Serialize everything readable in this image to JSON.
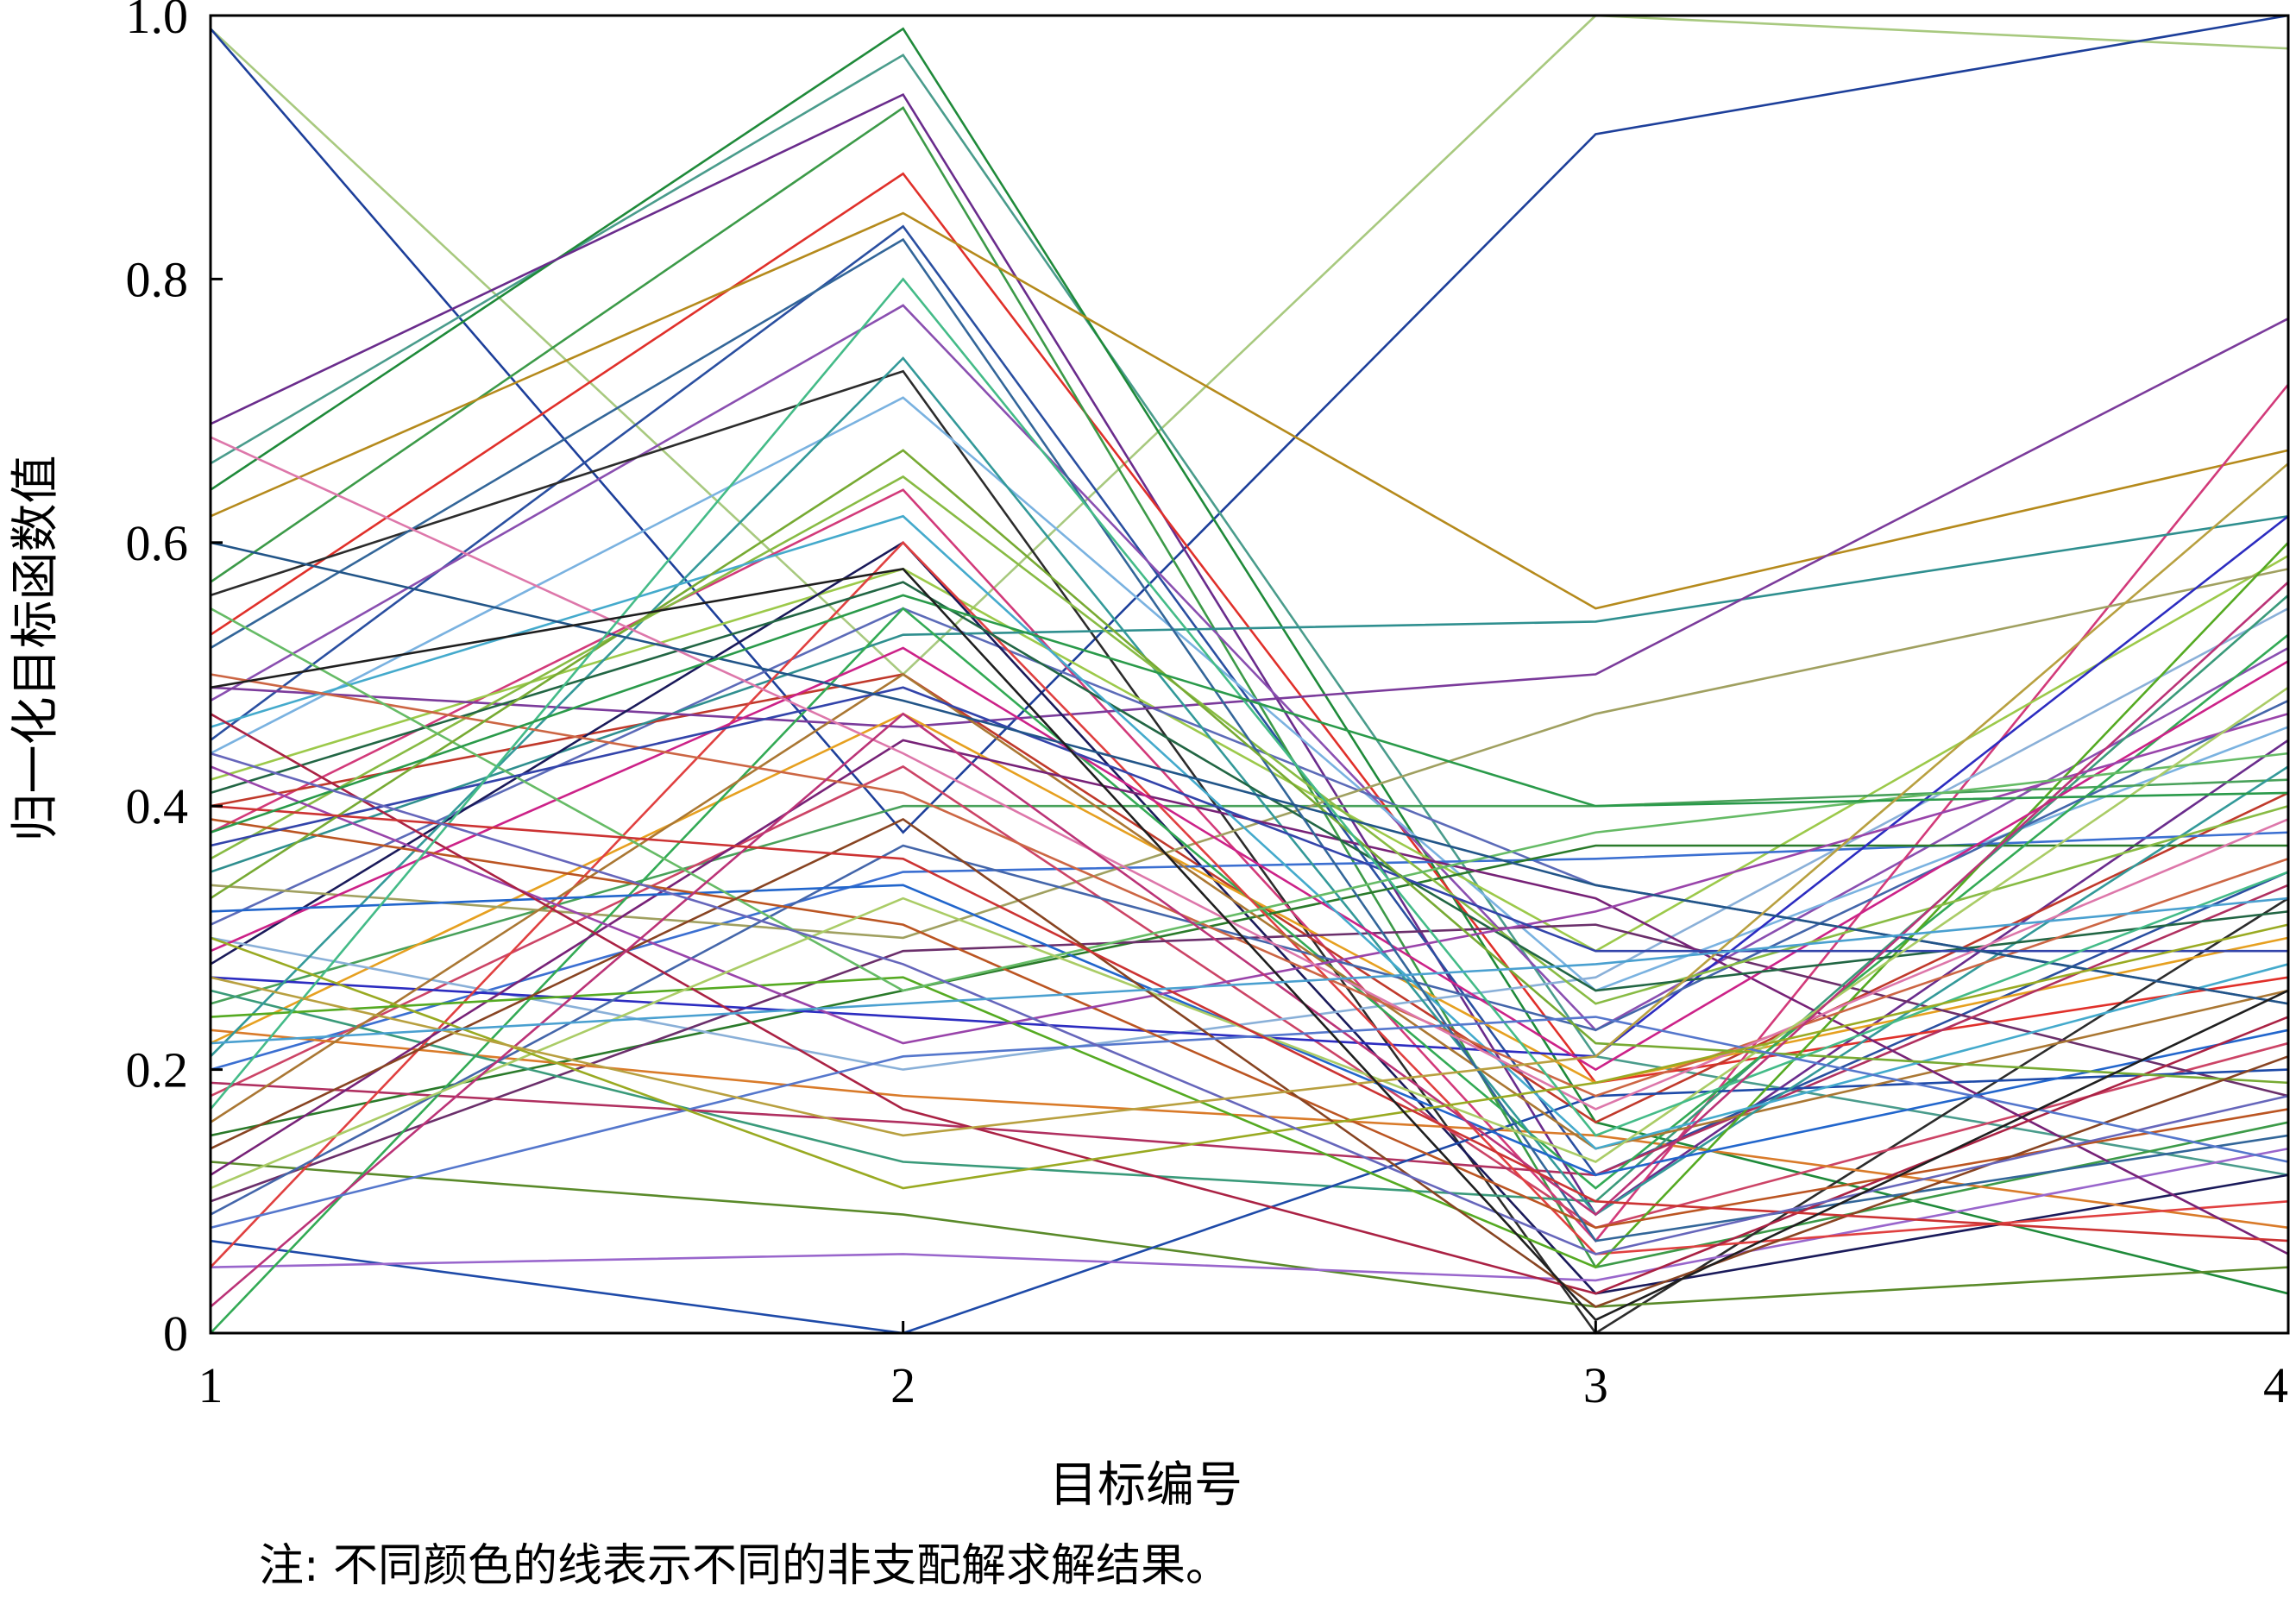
{
  "chart_data": {
    "type": "line",
    "subtype": "parallel-coordinates",
    "xlabel": "目标编号",
    "ylabel": "归一化目标函数值",
    "note": "注: 不同颜色的线表示不同的非支配解求解结果。",
    "x": [
      1,
      2,
      3,
      4
    ],
    "x_tick_labels": [
      "1",
      "2",
      "3",
      "4"
    ],
    "y_tick_labels": [
      "0",
      "0.2",
      "0.4",
      "0.6",
      "0.8",
      "1.0"
    ],
    "y_ticks": [
      0,
      0.2,
      0.4,
      0.6,
      0.8,
      1.0
    ],
    "xlim": [
      1,
      4
    ],
    "ylim": [
      0,
      1
    ],
    "grid": false,
    "series": [
      {
        "color": "#a8c97f",
        "values": [
          0.99,
          0.5,
          1.0,
          0.975
        ]
      },
      {
        "color": "#1d3f9a",
        "values": [
          0.99,
          0.38,
          0.91,
          1.0
        ]
      },
      {
        "color": "#4a9c8c",
        "values": [
          0.66,
          0.97,
          0.21,
          0.12
        ]
      },
      {
        "color": "#1f8a3a",
        "values": [
          0.64,
          0.99,
          0.16,
          0.03
        ]
      },
      {
        "color": "#6a2c8c",
        "values": [
          0.69,
          0.94,
          0.09,
          0.45
        ]
      },
      {
        "color": "#2a4fa0",
        "values": [
          0.45,
          0.84,
          0.12,
          0.35
        ]
      },
      {
        "color": "#e0302a",
        "values": [
          0.53,
          0.88,
          0.19,
          0.27
        ]
      },
      {
        "color": "#3c9a48",
        "values": [
          0.57,
          0.93,
          0.05,
          0.16
        ]
      },
      {
        "color": "#b58a1c",
        "values": [
          0.62,
          0.85,
          0.55,
          0.67
        ]
      },
      {
        "color": "#8a4fb0",
        "values": [
          0.48,
          0.78,
          0.23,
          0.52
        ]
      },
      {
        "color": "#2c2c2c",
        "values": [
          0.56,
          0.73,
          0.0,
          0.33
        ]
      },
      {
        "color": "#7ab2e0",
        "values": [
          0.44,
          0.71,
          0.26,
          0.46
        ]
      },
      {
        "color": "#d23a7a",
        "values": [
          0.38,
          0.64,
          0.07,
          0.72
        ]
      },
      {
        "color": "#9cc94a",
        "values": [
          0.42,
          0.58,
          0.29,
          0.59
        ]
      },
      {
        "color": "#5c6bb8",
        "values": [
          0.31,
          0.55,
          0.34,
          0.25
        ]
      },
      {
        "color": "#c0392b",
        "values": [
          0.4,
          0.5,
          0.16,
          0.41
        ]
      },
      {
        "color": "#2f8f8f",
        "values": [
          0.35,
          0.53,
          0.54,
          0.62
        ]
      },
      {
        "color": "#7b3b9b",
        "values": [
          0.49,
          0.46,
          0.5,
          0.77
        ]
      },
      {
        "color": "#1a1a5a",
        "values": [
          0.28,
          0.6,
          0.03,
          0.12
        ]
      },
      {
        "color": "#49a15a",
        "values": [
          0.25,
          0.4,
          0.4,
          0.42
        ]
      },
      {
        "color": "#e6a020",
        "values": [
          0.22,
          0.47,
          0.19,
          0.3
        ]
      },
      {
        "color": "#3b6fd1",
        "values": [
          0.2,
          0.35,
          0.36,
          0.38
        ]
      },
      {
        "color": "#a0a060",
        "values": [
          0.34,
          0.3,
          0.47,
          0.58
        ]
      },
      {
        "color": "#cc4466",
        "values": [
          0.18,
          0.43,
          0.08,
          0.22
        ]
      },
      {
        "color": "#2a7a2a",
        "values": [
          0.15,
          0.26,
          0.37,
          0.37
        ]
      },
      {
        "color": "#8ab0d8",
        "values": [
          0.3,
          0.2,
          0.27,
          0.55
        ]
      },
      {
        "color": "#6b2f6b",
        "values": [
          0.1,
          0.29,
          0.31,
          0.18
        ]
      },
      {
        "color": "#2c2cc0",
        "values": [
          0.27,
          0.24,
          0.21,
          0.62
        ]
      },
      {
        "color": "#d97b2a",
        "values": [
          0.23,
          0.18,
          0.15,
          0.08
        ]
      },
      {
        "color": "#3a9a7a",
        "values": [
          0.26,
          0.13,
          0.1,
          0.56
        ]
      },
      {
        "color": "#b03060",
        "values": [
          0.19,
          0.16,
          0.12,
          0.34
        ]
      },
      {
        "color": "#5a8a2a",
        "values": [
          0.13,
          0.09,
          0.02,
          0.05
        ]
      },
      {
        "color": "#1e4aa8",
        "values": [
          0.07,
          0.0,
          0.18,
          0.2
        ]
      },
      {
        "color": "#9966cc",
        "values": [
          0.05,
          0.06,
          0.04,
          0.14
        ]
      },
      {
        "color": "#33aa55",
        "values": [
          0.0,
          0.55,
          0.11,
          0.53
        ]
      },
      {
        "color": "#e04040",
        "values": [
          0.05,
          0.6,
          0.06,
          0.1
        ]
      },
      {
        "color": "#4466aa",
        "values": [
          0.09,
          0.37,
          0.23,
          0.48
        ]
      },
      {
        "color": "#aa7733",
        "values": [
          0.16,
          0.5,
          0.14,
          0.26
        ]
      },
      {
        "color": "#339999",
        "values": [
          0.21,
          0.74,
          0.09,
          0.43
        ]
      },
      {
        "color": "#772277",
        "values": [
          0.12,
          0.45,
          0.33,
          0.06
        ]
      },
      {
        "color": "#55aa22",
        "values": [
          0.24,
          0.27,
          0.05,
          0.6
        ]
      },
      {
        "color": "#cc2288",
        "values": [
          0.29,
          0.52,
          0.2,
          0.51
        ]
      },
      {
        "color": "#2266cc",
        "values": [
          0.32,
          0.34,
          0.12,
          0.23
        ]
      },
      {
        "color": "#88bb44",
        "values": [
          0.36,
          0.65,
          0.25,
          0.4
        ]
      },
      {
        "color": "#bb5522",
        "values": [
          0.39,
          0.31,
          0.08,
          0.17
        ]
      },
      {
        "color": "#226644",
        "values": [
          0.41,
          0.57,
          0.26,
          0.32
        ]
      },
      {
        "color": "#9944aa",
        "values": [
          0.43,
          0.22,
          0.32,
          0.47
        ]
      },
      {
        "color": "#44aacc",
        "values": [
          0.46,
          0.62,
          0.14,
          0.28
        ]
      },
      {
        "color": "#cc6644",
        "values": [
          0.5,
          0.41,
          0.18,
          0.36
        ]
      },
      {
        "color": "#336699",
        "values": [
          0.52,
          0.83,
          0.07,
          0.15
        ]
      },
      {
        "color": "#66bb66",
        "values": [
          0.55,
          0.26,
          0.38,
          0.44
        ]
      },
      {
        "color": "#aa2244",
        "values": [
          0.47,
          0.17,
          0.03,
          0.24
        ]
      },
      {
        "color": "#3344aa",
        "values": [
          0.37,
          0.49,
          0.29,
          0.29
        ]
      },
      {
        "color": "#77aa33",
        "values": [
          0.33,
          0.67,
          0.22,
          0.19
        ]
      },
      {
        "color": "#dd77aa",
        "values": [
          0.68,
          0.44,
          0.17,
          0.39
        ]
      },
      {
        "color": "#225588",
        "values": [
          0.6,
          0.48,
          0.34,
          0.25
        ]
      },
      {
        "color": "#aacc66",
        "values": [
          0.11,
          0.33,
          0.13,
          0.49
        ]
      },
      {
        "color": "#884422",
        "values": [
          0.14,
          0.39,
          0.02,
          0.21
        ]
      },
      {
        "color": "#44bb88",
        "values": [
          0.17,
          0.8,
          0.15,
          0.35
        ]
      },
      {
        "color": "#bb3377",
        "values": [
          0.02,
          0.47,
          0.09,
          0.57
        ]
      },
      {
        "color": "#5577cc",
        "values": [
          0.08,
          0.21,
          0.24,
          0.13
        ]
      },
      {
        "color": "#99aa22",
        "values": [
          0.3,
          0.11,
          0.19,
          0.31
        ]
      },
      {
        "color": "#cc3333",
        "values": [
          0.4,
          0.36,
          0.1,
          0.07
        ]
      },
      {
        "color": "#2a9a4a",
        "values": [
          0.38,
          0.56,
          0.4,
          0.41
        ]
      },
      {
        "color": "#6666bb",
        "values": [
          0.44,
          0.28,
          0.06,
          0.18
        ]
      },
      {
        "color": "#b8a040",
        "values": [
          0.27,
          0.15,
          0.21,
          0.66
        ]
      },
      {
        "color": "#1f1f1f",
        "values": [
          0.49,
          0.58,
          0.01,
          0.26
        ]
      },
      {
        "color": "#4aa0d0",
        "values": [
          0.22,
          0.25,
          0.28,
          0.33
        ]
      }
    ]
  }
}
